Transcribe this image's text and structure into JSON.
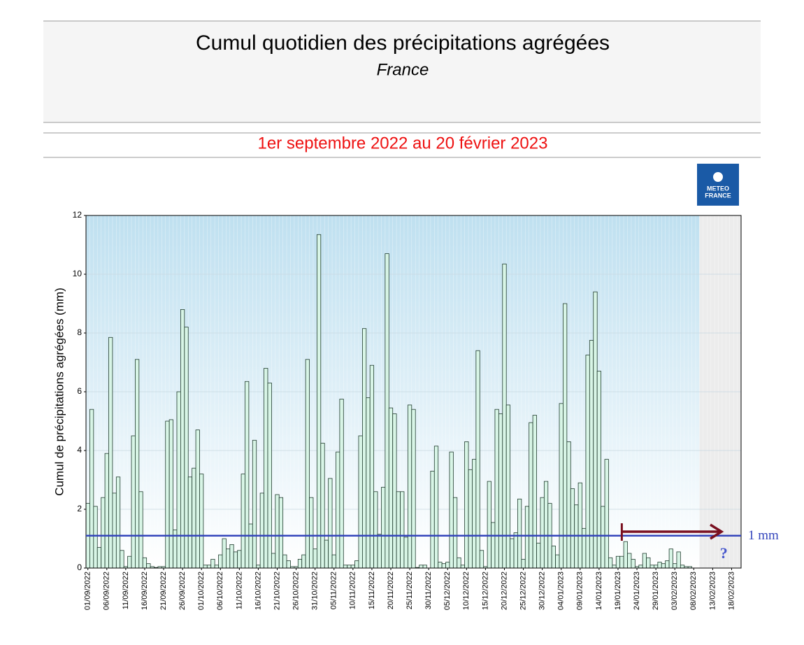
{
  "chart_data": {
    "type": "bar",
    "title": "Cumul quotidien des précipitations agrégées",
    "subtitle": "France",
    "period": "1er septembre 2022 au 20 février 2023",
    "logo": [
      "METEO",
      "FRANCE"
    ],
    "ylabel": "Cumul de précipitations agrégées (mm)",
    "ylim": [
      0,
      12
    ],
    "yticks": [
      0,
      2,
      4,
      6,
      8,
      10,
      12
    ],
    "grid": true,
    "color": "#d8f5e6",
    "reference_line": 1.1,
    "reference_label": "1 mm",
    "reference_color": "#3344bb",
    "unknown_marker": "?",
    "categories": [
      "01/09/2022",
      null,
      null,
      null,
      null,
      "06/09/2022",
      null,
      null,
      null,
      null,
      "11/09/2022",
      null,
      null,
      null,
      null,
      "16/09/2022",
      null,
      null,
      null,
      null,
      "21/09/2022",
      null,
      null,
      null,
      null,
      "26/09/2022",
      null,
      null,
      null,
      null,
      "01/10/2022",
      null,
      null,
      null,
      null,
      "06/10/2022",
      null,
      null,
      null,
      null,
      "11/10/2022",
      null,
      null,
      null,
      null,
      "16/10/2022",
      null,
      null,
      null,
      null,
      "21/10/2022",
      null,
      null,
      null,
      null,
      "26/10/2022",
      null,
      null,
      null,
      null,
      "31/10/2022",
      null,
      null,
      null,
      null,
      "05/11/2022",
      null,
      null,
      null,
      null,
      "10/11/2022",
      null,
      null,
      null,
      null,
      "15/11/2022",
      null,
      null,
      null,
      null,
      "20/11/2022",
      null,
      null,
      null,
      null,
      "25/11/2022",
      null,
      null,
      null,
      null,
      "30/11/2022",
      null,
      null,
      null,
      null,
      "05/12/2022",
      null,
      null,
      null,
      null,
      "10/12/2022",
      null,
      null,
      null,
      null,
      "15/12/2022",
      null,
      null,
      null,
      null,
      "20/12/2022",
      null,
      null,
      null,
      null,
      "25/12/2022",
      null,
      null,
      null,
      null,
      "30/12/2022",
      null,
      null,
      null,
      null,
      "04/01/2023",
      null,
      null,
      null,
      null,
      "09/01/2023",
      null,
      null,
      null,
      null,
      "14/01/2023",
      null,
      null,
      null,
      null,
      "19/01/2023",
      null,
      null,
      null,
      null,
      "24/01/2023",
      null,
      null,
      null,
      null,
      "29/01/2023",
      null,
      null,
      null,
      null,
      "03/02/2023",
      null,
      null,
      null,
      null,
      "08/02/2023",
      null,
      null,
      null,
      null,
      "13/02/2023",
      null,
      null,
      null,
      null,
      "18/02/2023",
      null,
      null
    ],
    "values": [
      2.2,
      5.4,
      2.1,
      0.7,
      2.4,
      3.9,
      7.85,
      2.55,
      3.1,
      0.6,
      0.05,
      0.4,
      4.5,
      7.1,
      2.6,
      0.35,
      0.15,
      0.05,
      0.02,
      0.05,
      0.05,
      5.0,
      5.05,
      1.3,
      6.0,
      8.8,
      8.2,
      3.1,
      3.4,
      4.7,
      3.2,
      0.1,
      0.1,
      0.3,
      0.1,
      0.45,
      1.0,
      0.65,
      0.8,
      0.55,
      0.6,
      3.2,
      6.35,
      1.5,
      4.35,
      0.1,
      2.55,
      6.8,
      6.3,
      0.5,
      2.5,
      2.4,
      0.45,
      0.25,
      0.05,
      0.05,
      0.3,
      0.45,
      7.1,
      2.4,
      0.65,
      11.35,
      4.25,
      0.95,
      3.05,
      0.45,
      3.95,
      5.75,
      0.1,
      0.1,
      0.1,
      0.25,
      4.5,
      8.15,
      5.8,
      6.9,
      2.6,
      1.15,
      2.75,
      10.7,
      5.45,
      5.25,
      2.6,
      2.6,
      1.05,
      5.55,
      5.4,
      0.02,
      0.1,
      0.1,
      0.0,
      3.3,
      4.15,
      0.2,
      0.15,
      0.2,
      3.95,
      2.4,
      0.35,
      0.1,
      4.3,
      3.35,
      3.7,
      7.4,
      0.6,
      0.05,
      2.95,
      1.55,
      5.4,
      5.25,
      10.35,
      5.55,
      1.0,
      1.2,
      2.35,
      0.3,
      2.1,
      4.95,
      5.2,
      0.85,
      2.4,
      2.95,
      2.2,
      0.75,
      0.45,
      5.6,
      9.0,
      4.3,
      2.7,
      2.15,
      2.9,
      1.35,
      7.25,
      7.75,
      9.4,
      6.7,
      2.1,
      3.7,
      0.35,
      0.1,
      0.4,
      0.4,
      0.9,
      0.5,
      0.3,
      0.05,
      0.1,
      0.5,
      0.35,
      0.1,
      0.1,
      0.2,
      0.15,
      0.25,
      0.65,
      0.15,
      0.55,
      0.1,
      0.05,
      0.05,
      0.0,
      0.0,
      null,
      null,
      null,
      null,
      null,
      null,
      null,
      null,
      null,
      null,
      null
    ]
  }
}
